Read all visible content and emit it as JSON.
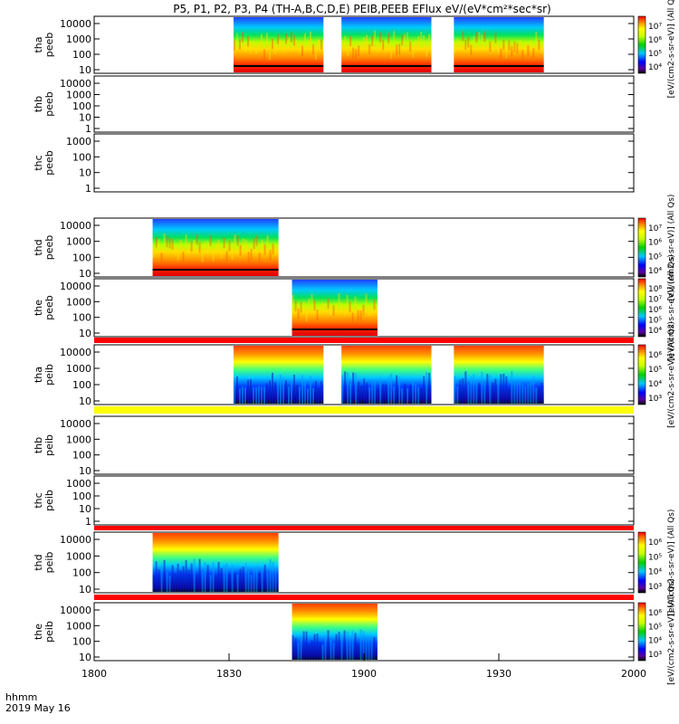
{
  "chart_data": {
    "type": "heatmap",
    "title": "P5, P1, P2, P3, P4 (TH-A,B,C,D,E) PEIB,PEEB EFlux eV/(eV*cm²*sec*sr)",
    "x_ticks": [
      "1800",
      "1830",
      "1900",
      "1930",
      "2000"
    ],
    "x_range_minutes": [
      0,
      120
    ],
    "x_footer": [
      "hhmm",
      "2019 May 16"
    ],
    "colorbar_unit": "[eV/(cm2-s-sr-eV)] (All Qs)",
    "panels": [
      {
        "id": "tha-peeb",
        "ylabel": [
          "tha",
          "peeb"
        ],
        "y_ticks": [
          "10000",
          "1000",
          "100",
          "10"
        ],
        "colorbar": true,
        "cb_ticks": [
          "10⁷",
          "10⁶",
          "10⁵",
          "10⁴"
        ],
        "blocks": [
          {
            "start": 31,
            "end": 51
          },
          {
            "start": 55,
            "end": 75
          },
          {
            "start": 80,
            "end": 100
          }
        ],
        "kind": "electron"
      },
      {
        "id": "thb-peeb",
        "ylabel": [
          "thb",
          "peeb"
        ],
        "y_ticks": [
          "10000",
          "1000",
          "100",
          "10",
          "1"
        ],
        "colorbar": false,
        "blocks": []
      },
      {
        "id": "thc-peeb",
        "ylabel": [
          "thc",
          "peeb"
        ],
        "y_ticks": [
          "1000",
          "100",
          "10",
          "1"
        ],
        "colorbar": false,
        "blocks": []
      },
      {
        "id": "thd-peeb",
        "ylabel": [
          "thd",
          "peeb"
        ],
        "y_ticks": [
          "10000",
          "1000",
          "100",
          "10"
        ],
        "colorbar": true,
        "cb_ticks": [
          "10⁷",
          "10⁶",
          "10⁵",
          "10⁴"
        ],
        "blocks": [
          {
            "start": 13,
            "end": 41
          }
        ],
        "kind": "electron"
      },
      {
        "id": "the-peeb",
        "ylabel": [
          "the",
          "peeb"
        ],
        "y_ticks": [
          "10000",
          "1000",
          "100",
          "10"
        ],
        "colorbar": true,
        "cb_ticks": [
          "10⁸",
          "10⁷",
          "10⁶",
          "10⁵",
          "10⁴"
        ],
        "blocks": [
          {
            "start": 44,
            "end": 63
          }
        ],
        "kind": "electron"
      },
      {
        "id": "tha-peib",
        "ylabel": [
          "tha",
          "peib"
        ],
        "y_ticks": [
          "10000",
          "1000",
          "100",
          "10"
        ],
        "colorbar": true,
        "cb_ticks": [
          "10⁶",
          "10⁵",
          "10⁴",
          "10³"
        ],
        "blocks": [
          {
            "start": 31,
            "end": 51
          },
          {
            "start": 55,
            "end": 75
          },
          {
            "start": 80,
            "end": 100
          }
        ],
        "kind": "ion"
      },
      {
        "id": "thb-peib",
        "ylabel": [
          "thb",
          "peib"
        ],
        "y_ticks": [
          "10000",
          "1000",
          "100",
          "10"
        ],
        "colorbar": false,
        "blocks": []
      },
      {
        "id": "thc-peib",
        "ylabel": [
          "thc",
          "peib"
        ],
        "y_ticks": [
          "1000",
          "100",
          "10",
          "1"
        ],
        "colorbar": false,
        "blocks": []
      },
      {
        "id": "thd-peib",
        "ylabel": [
          "thd",
          "peib"
        ],
        "y_ticks": [
          "10000",
          "1000",
          "100",
          "10"
        ],
        "colorbar": true,
        "cb_ticks": [
          "10⁶",
          "10⁵",
          "10⁴",
          "10³"
        ],
        "blocks": [
          {
            "start": 13,
            "end": 41
          }
        ],
        "kind": "ion"
      },
      {
        "id": "the-peib",
        "ylabel": [
          "the",
          "peib"
        ],
        "y_ticks": [
          "10000",
          "1000",
          "100",
          "10"
        ],
        "colorbar": true,
        "cb_ticks": [
          "10⁶",
          "10⁵",
          "10⁴",
          "10³"
        ],
        "blocks": [
          {
            "start": 44,
            "end": 63
          }
        ],
        "kind": "ion"
      }
    ],
    "colors": {
      "red_band": "#ff0000",
      "yellow_band": "#ffff00"
    }
  }
}
